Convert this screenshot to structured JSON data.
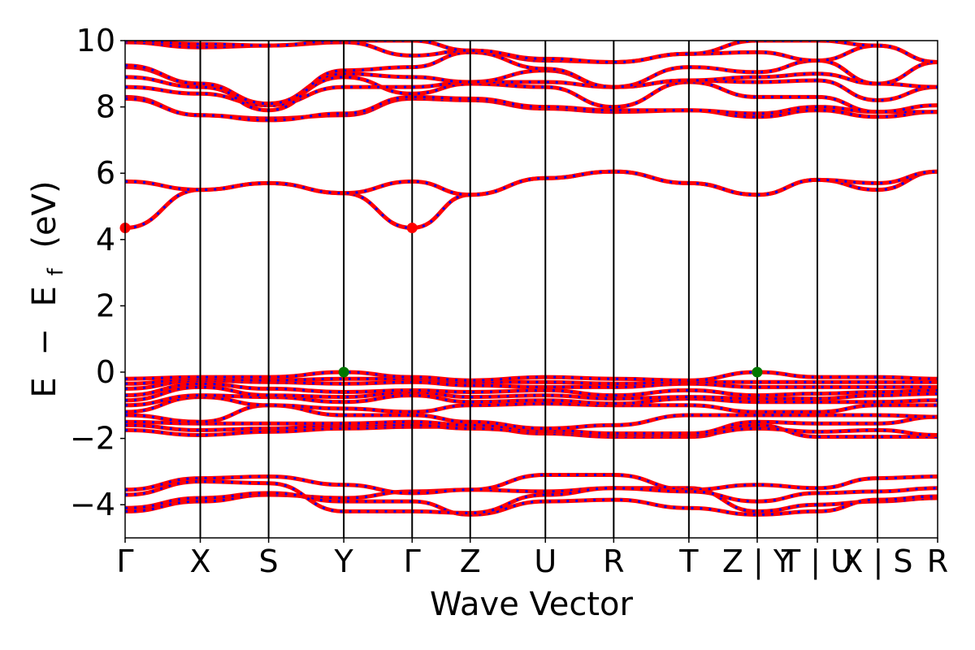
{
  "chart_data": {
    "type": "line",
    "xlabel": "Wave Vector",
    "ylabel_parts": [
      "E",
      "−",
      "E",
      "f",
      "(eV)"
    ],
    "ylim": [
      -5,
      10
    ],
    "yticks": [
      "10",
      "8",
      "6",
      "4",
      "2",
      "0",
      "−2",
      "−4"
    ],
    "ytick_values": [
      10,
      8,
      6,
      4,
      2,
      0,
      -2,
      -4
    ],
    "x_segment_lengths": [
      1.1,
      1.0,
      1.1,
      1.0,
      0.85,
      1.1,
      1.0,
      1.1,
      1.0,
      0.88,
      0.88,
      0.88
    ],
    "kpoint_labels": [
      "Γ",
      "X",
      "S",
      "Y",
      "Γ",
      "Z",
      "U",
      "R",
      "T",
      "Z | Y",
      "T | U",
      "X | S",
      "R"
    ],
    "colors": {
      "spin_up": "#ff0000",
      "spin_down": "#0000ff",
      "axes": "#000000",
      "vbm": "#007700",
      "cbm": "#ff0000"
    },
    "line_styles": {
      "spin_up": "solid",
      "spin_down": "dashed"
    },
    "bands": [
      {
        "group": "valence",
        "energies": [
          -4.2,
          -3.9,
          -3.7,
          -3.8,
          -3.6,
          -3.55,
          -3.6,
          -3.5,
          -3.5,
          -4.2,
          -4.0,
          -3.9,
          -3.8
        ]
      },
      {
        "group": "valence",
        "energies": [
          -4.1,
          -3.8,
          -3.65,
          -3.9,
          -3.9,
          -4.3,
          -3.9,
          -3.85,
          -4.1,
          -4.3,
          -4.2,
          -3.85,
          -3.75
        ]
      },
      {
        "group": "valence",
        "energies": [
          -3.55,
          -3.2,
          -3.15,
          -3.4,
          -3.65,
          -3.55,
          -3.1,
          -3.1,
          -3.55,
          -3.4,
          -3.5,
          -3.2,
          -3.15
        ]
      },
      {
        "group": "valence",
        "energies": [
          -3.7,
          -3.3,
          -3.35,
          -4.2,
          -4.2,
          -4.25,
          -3.7,
          -3.5,
          -3.6,
          -3.9,
          -3.65,
          -3.6,
          -3.5
        ]
      },
      {
        "group": "valence",
        "energies": [
          -1.75,
          -1.9,
          -1.8,
          -1.7,
          -1.65,
          -1.65,
          -1.85,
          -1.95,
          -1.95,
          -1.6,
          -1.95,
          -1.95,
          -1.95
        ]
      },
      {
        "group": "valence",
        "energies": [
          -1.6,
          -1.75,
          -1.7,
          -1.6,
          -1.6,
          -1.7,
          -1.8,
          -1.9,
          -1.9,
          -1.7,
          -1.8,
          -1.75,
          -1.9
        ]
      },
      {
        "group": "valence",
        "energies": [
          -1.5,
          -1.55,
          -1.55,
          -1.55,
          -1.5,
          -1.6,
          -1.75,
          -1.85,
          -1.85,
          -1.5,
          -1.55,
          -1.55,
          -1.35
        ]
      },
      {
        "group": "valence",
        "energies": [
          -1.3,
          -1.5,
          -1.0,
          -1.3,
          -1.3,
          -1.5,
          -1.7,
          -1.6,
          -1.3,
          -1.3,
          -1.3,
          -1.3,
          -1.35
        ]
      },
      {
        "group": "valence",
        "energies": [
          -1.2,
          -0.75,
          -1.0,
          -1.1,
          -1.2,
          -1.0,
          -0.95,
          -1.0,
          -1.0,
          -1.2,
          -1.2,
          -1.0,
          -1.0
        ]
      },
      {
        "group": "valence",
        "energies": [
          -1.0,
          -0.7,
          -0.75,
          -0.9,
          -0.7,
          -0.9,
          -0.85,
          -0.95,
          -0.8,
          -0.9,
          -0.9,
          -0.9,
          -0.85
        ]
      },
      {
        "group": "valence",
        "energies": [
          -0.85,
          -0.45,
          -0.7,
          -0.75,
          -0.6,
          -0.75,
          -0.7,
          -0.8,
          -0.75,
          -0.8,
          -0.8,
          -0.7,
          -0.65
        ]
      },
      {
        "group": "valence",
        "energies": [
          -0.7,
          -0.35,
          -0.5,
          -0.6,
          -0.55,
          -0.6,
          -0.55,
          -0.7,
          -0.55,
          -0.7,
          -0.65,
          -0.6,
          -0.55
        ]
      },
      {
        "group": "valence",
        "energies": [
          -0.5,
          -0.25,
          -0.3,
          -0.35,
          -0.3,
          -0.4,
          -0.45,
          -0.45,
          -0.35,
          -0.45,
          -0.45,
          -0.45,
          -0.45
        ]
      },
      {
        "group": "valence",
        "energies": [
          -0.35,
          -0.2,
          -0.25,
          -0.2,
          -0.2,
          -0.3,
          -0.3,
          -0.35,
          -0.3,
          -0.3,
          -0.3,
          -0.3,
          -0.3
        ]
      },
      {
        "group": "valence",
        "energies": [
          -0.2,
          -0.15,
          -0.15,
          0.0,
          -0.15,
          -0.25,
          -0.15,
          -0.2,
          -0.25,
          0.0,
          -0.15,
          -0.15,
          -0.2
        ]
      },
      {
        "group": "conduction",
        "energies": [
          4.35,
          5.5,
          5.7,
          5.4,
          4.35,
          5.35,
          5.85,
          6.05,
          5.7,
          5.35,
          5.8,
          5.5,
          6.05
        ]
      },
      {
        "group": "conduction",
        "energies": [
          5.75,
          5.5,
          5.7,
          5.4,
          5.75,
          5.35,
          5.85,
          6.05,
          5.7,
          5.35,
          5.8,
          5.7,
          6.05
        ]
      },
      {
        "group": "conduction",
        "energies": [
          8.3,
          7.75,
          7.65,
          7.75,
          8.25,
          8.2,
          7.95,
          7.85,
          7.9,
          7.7,
          7.9,
          7.7,
          7.85
        ]
      },
      {
        "group": "conduction",
        "energies": [
          8.25,
          7.75,
          7.6,
          7.8,
          8.3,
          8.25,
          8.0,
          7.9,
          7.9,
          7.8,
          8.0,
          7.85,
          7.85
        ]
      },
      {
        "group": "conduction",
        "energies": [
          8.6,
          8.4,
          8.05,
          8.9,
          8.4,
          8.7,
          8.6,
          8.0,
          8.75,
          8.3,
          8.3,
          7.85,
          8.05
        ]
      },
      {
        "group": "conduction",
        "energies": [
          8.9,
          8.6,
          8.05,
          8.6,
          8.6,
          8.75,
          8.75,
          8.6,
          8.8,
          8.75,
          8.8,
          8.2,
          8.6
        ]
      },
      {
        "group": "conduction",
        "energies": [
          9.2,
          8.7,
          8.1,
          9.0,
          8.9,
          8.75,
          9.1,
          8.6,
          8.8,
          8.9,
          9.0,
          8.7,
          8.6
        ]
      },
      {
        "group": "conduction",
        "energies": [
          9.25,
          8.7,
          7.9,
          9.1,
          9.2,
          9.65,
          9.15,
          8.6,
          9.2,
          9.05,
          9.4,
          8.7,
          9.35
        ]
      },
      {
        "group": "conduction",
        "energies": [
          9.95,
          9.8,
          9.85,
          9.95,
          9.55,
          9.7,
          9.4,
          9.35,
          9.6,
          9.65,
          9.4,
          9.85,
          9.35
        ]
      },
      {
        "group": "conduction",
        "energies": [
          10.0,
          9.9,
          9.85,
          10.0,
          10.0,
          9.7,
          9.45,
          9.35,
          9.6,
          10.0,
          10.0,
          9.85,
          9.35
        ]
      }
    ],
    "vbm_markers": [
      {
        "k_index": 3,
        "energy": 0.0
      },
      {
        "k_index": 9,
        "energy": 0.0
      }
    ],
    "cbm_markers": [
      {
        "k_index": 0,
        "energy": 4.35
      },
      {
        "k_index": 4,
        "energy": 4.35
      }
    ],
    "grid": false,
    "legend": "none"
  }
}
